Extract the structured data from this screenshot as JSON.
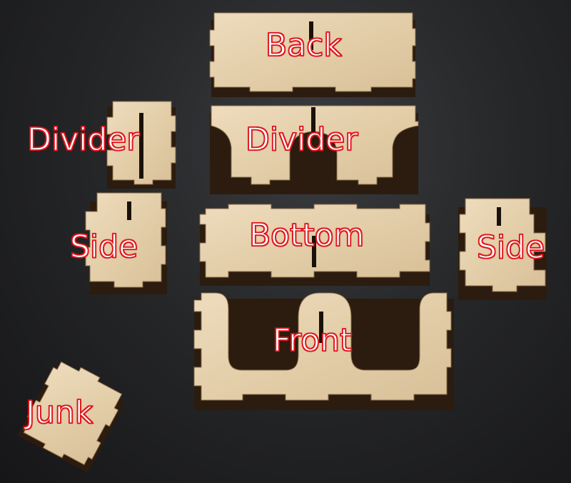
{
  "labels": {
    "back": "Back",
    "divider_left": "Divider",
    "divider_right": "Divider",
    "side_left": "Side",
    "bottom": "Bottom",
    "side_right": "Side",
    "front": "Front",
    "junk": "Junk"
  },
  "colors": {
    "wood": "#e6d2b0",
    "wood_edge": "#3a2614",
    "label_fill": "#ffffff",
    "label_outline": "#e0141c",
    "background": "#242527"
  }
}
